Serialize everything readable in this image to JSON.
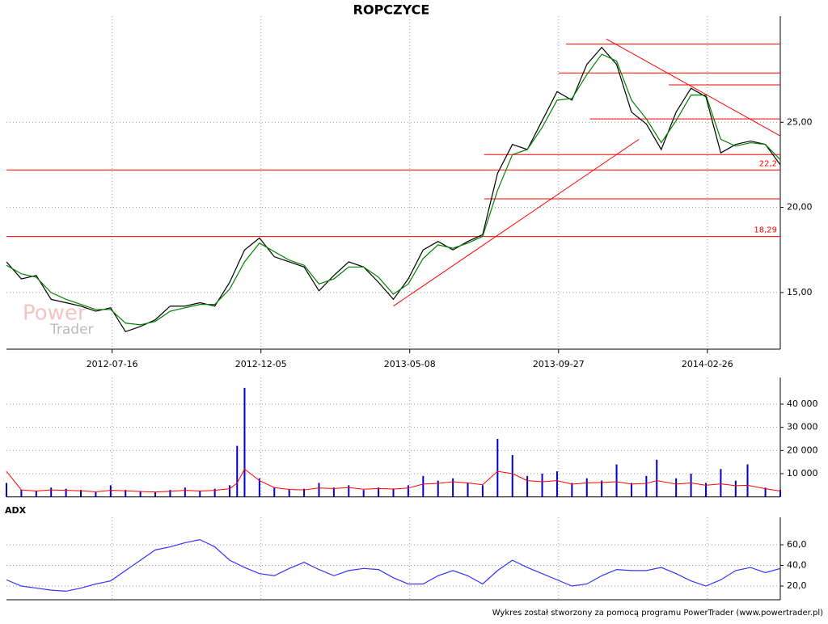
{
  "chart_data": [
    {
      "type": "line",
      "title": "ROPCZYCE",
      "x": [
        0,
        10,
        20,
        30,
        40,
        50,
        60,
        70,
        80,
        90,
        100,
        110,
        120,
        130,
        140,
        150,
        160,
        170,
        180,
        190,
        200,
        210,
        220,
        230,
        240,
        250,
        260,
        270,
        280,
        290,
        300,
        310,
        320,
        330,
        340,
        350,
        360,
        370,
        380,
        390,
        400,
        410,
        420,
        430,
        440,
        450,
        460,
        470,
        480,
        490,
        500,
        510,
        520
      ],
      "series": [
        {
          "color": "#000000",
          "values": [
            16.8,
            15.8,
            16.0,
            14.6,
            14.4,
            14.2,
            13.9,
            14.1,
            12.7,
            13.0,
            13.4,
            14.2,
            14.2,
            14.4,
            14.2,
            15.6,
            17.5,
            18.2,
            17.1,
            16.8,
            16.5,
            15.1,
            16.0,
            16.8,
            16.5,
            15.6,
            14.6,
            15.8,
            17.5,
            18.0,
            17.5,
            18.0,
            18.4,
            22.0,
            23.7,
            23.4,
            25.1,
            26.8,
            26.3,
            28.4,
            29.4,
            28.4,
            25.6,
            24.9,
            23.4,
            25.6,
            27.0,
            26.5,
            23.2,
            23.7,
            23.9,
            23.7,
            22.5
          ]
        },
        {
          "color": "#008000",
          "values": [
            16.6,
            16.1,
            15.9,
            15.0,
            14.6,
            14.3,
            14.0,
            14.0,
            13.2,
            13.1,
            13.3,
            13.9,
            14.1,
            14.3,
            14.3,
            15.2,
            16.8,
            17.9,
            17.4,
            16.9,
            16.6,
            15.5,
            15.8,
            16.5,
            16.5,
            15.9,
            14.9,
            15.5,
            17.0,
            17.8,
            17.6,
            17.9,
            18.3,
            21.0,
            23.1,
            23.4,
            24.7,
            26.3,
            26.4,
            27.8,
            29.0,
            28.6,
            26.3,
            25.2,
            23.8,
            25.1,
            26.6,
            26.6,
            24.0,
            23.6,
            23.8,
            23.7,
            22.8
          ]
        }
      ],
      "xlim": [
        0,
        520
      ],
      "xticks": [
        {
          "value": 71,
          "label": "2012-07-16"
        },
        {
          "value": 171,
          "label": "2012-12-05"
        },
        {
          "value": 271,
          "label": "2013-05-08"
        },
        {
          "value": 371,
          "label": "2013-09-27"
        },
        {
          "value": 471,
          "label": "2014-02-26"
        }
      ],
      "ylim": [
        11.67,
        30.76
      ],
      "yticks": [
        {
          "value": 15,
          "label": "15,00"
        },
        {
          "value": 20,
          "label": "20,00"
        },
        {
          "value": 25,
          "label": "25,00"
        }
      ],
      "grid": true,
      "levels": [
        {
          "value": 18.29,
          "label": "18,29",
          "x": [
            0,
            520
          ]
        },
        {
          "value": 22.2,
          "label": "22,2",
          "x": [
            0,
            520
          ]
        },
        {
          "value": 29.6,
          "x": [
            376,
            520
          ]
        },
        {
          "value": 27.9,
          "x": [
            371,
            520
          ]
        },
        {
          "value": 27.2,
          "x": [
            445,
            520
          ]
        },
        {
          "value": 25.2,
          "x": [
            392,
            520
          ]
        },
        {
          "value": 23.1,
          "x": [
            321,
            520
          ]
        },
        {
          "value": 20.5,
          "x": [
            321,
            520
          ]
        }
      ],
      "trend_lines": [
        {
          "x": [
            260,
            425
          ],
          "y": [
            14.2,
            24.0
          ]
        },
        {
          "x": [
            403,
            520
          ],
          "y": [
            29.9,
            24.2
          ]
        }
      ],
      "line_color": "#ff0000",
      "watermark": [
        "Power",
        "Trader"
      ]
    },
    {
      "type": "bar",
      "x": [
        0,
        10,
        20,
        30,
        40,
        50,
        60,
        70,
        80,
        90,
        100,
        110,
        120,
        130,
        140,
        150,
        155,
        160,
        170,
        180,
        190,
        200,
        210,
        220,
        230,
        240,
        250,
        260,
        270,
        280,
        290,
        300,
        310,
        320,
        330,
        340,
        350,
        360,
        370,
        380,
        390,
        400,
        410,
        420,
        430,
        437,
        450,
        460,
        470,
        480,
        490,
        498,
        510,
        520
      ],
      "series": [
        {
          "mark": "bar",
          "color": "#0000cc",
          "values": [
            6000,
            3000,
            2500,
            4000,
            3500,
            3000,
            2000,
            5000,
            3000,
            2500,
            2000,
            3000,
            4000,
            2500,
            3500,
            5000,
            22000,
            47000,
            8000,
            4000,
            3000,
            3500,
            6000,
            4000,
            5000,
            3000,
            4000,
            3500,
            5000,
            9000,
            7000,
            8000,
            6000,
            5000,
            25000,
            18000,
            9000,
            10000,
            11000,
            6000,
            8000,
            7000,
            14000,
            6000,
            9000,
            16000,
            8000,
            10000,
            6000,
            12000,
            7000,
            14000,
            4000,
            3000
          ]
        },
        {
          "mark": "line",
          "color": "#ff0000",
          "values": [
            11000,
            3000,
            2500,
            3000,
            2800,
            2600,
            2200,
            2800,
            2600,
            2300,
            2100,
            2400,
            2800,
            2500,
            2800,
            3500,
            6000,
            12000,
            7000,
            4000,
            3200,
            3000,
            3800,
            3600,
            4000,
            3300,
            3600,
            3400,
            3800,
            5500,
            5800,
            6500,
            6000,
            5200,
            11000,
            10000,
            7000,
            6500,
            7000,
            5500,
            6000,
            6200,
            6500,
            5500,
            5800,
            7000,
            5500,
            6000,
            5000,
            5600,
            4800,
            5000,
            3500,
            2500
          ]
        }
      ],
      "xlim": [
        0,
        520
      ],
      "ylim": [
        0,
        48000
      ],
      "yticks": [
        {
          "value": 10000,
          "label": "10 000"
        },
        {
          "value": 20000,
          "label": "20 000"
        },
        {
          "value": 30000,
          "label": "30 000"
        },
        {
          "value": 40000,
          "label": "40 000"
        }
      ],
      "grid": true
    },
    {
      "type": "line",
      "title": "ADX",
      "x": [
        0,
        10,
        20,
        30,
        40,
        50,
        60,
        70,
        80,
        90,
        100,
        110,
        120,
        130,
        140,
        150,
        160,
        170,
        180,
        190,
        200,
        210,
        220,
        230,
        240,
        250,
        260,
        270,
        280,
        290,
        300,
        310,
        320,
        330,
        340,
        350,
        360,
        370,
        380,
        390,
        400,
        410,
        420,
        430,
        440,
        450,
        460,
        470,
        480,
        490,
        500,
        510,
        520
      ],
      "series": [
        {
          "color": "#3333ff",
          "values": [
            26,
            20,
            18,
            16,
            15,
            18,
            22,
            25,
            35,
            45,
            55,
            58,
            62,
            65,
            58,
            45,
            38,
            32,
            30,
            37,
            43,
            36,
            30,
            35,
            37,
            36,
            28,
            22,
            22,
            30,
            35,
            30,
            22,
            35,
            45,
            38,
            32,
            26,
            20,
            22,
            30,
            36,
            35,
            35,
            38,
            32,
            25,
            20,
            26,
            35,
            38,
            33,
            37
          ]
        }
      ],
      "xlim": [
        0,
        520
      ],
      "ylim": [
        6.7,
        78.8
      ],
      "yticks": [
        {
          "value": 20,
          "label": "20,0"
        },
        {
          "value": 40,
          "label": "40,0"
        },
        {
          "value": 60,
          "label": "60,0"
        }
      ],
      "grid": true
    }
  ],
  "footer": "Wykres został stworzony za pomocą programu PowerTrader (www.powertrader.pl)"
}
